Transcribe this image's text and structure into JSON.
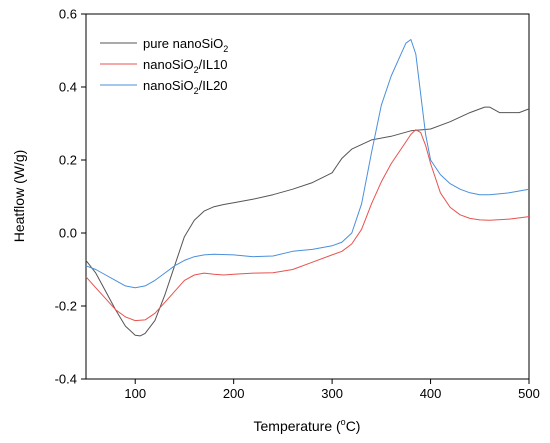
{
  "chart_data": {
    "type": "line",
    "title": "",
    "xlabel": {
      "prefix": "Temperature (",
      "sup": "o",
      "suffix": "C)"
    },
    "ylabel": "Heatflow (W/g)",
    "xlim": [
      50,
      500
    ],
    "ylim": [
      -0.4,
      0.6
    ],
    "xticks": [
      100,
      200,
      300,
      400,
      500
    ],
    "yticks": [
      -0.4,
      -0.2,
      0.0,
      0.2,
      0.4,
      0.6
    ],
    "xtick_labels": [
      "100",
      "200",
      "300",
      "400",
      "500"
    ],
    "ytick_labels": [
      "-0.4",
      "-0.2",
      "0.0",
      "0.2",
      "0.4",
      "0.6"
    ],
    "grid": false,
    "legend": {
      "placement": "top-left",
      "frame": false
    },
    "series": [
      {
        "name": {
          "main": "pure nanoSiO",
          "sub": "2",
          "tail": ""
        },
        "color": "#555555",
        "x": [
          50,
          60,
          70,
          80,
          90,
          100,
          105,
          110,
          120,
          130,
          140,
          150,
          160,
          170,
          180,
          190,
          200,
          220,
          240,
          260,
          280,
          300,
          305,
          310,
          320,
          340,
          360,
          380,
          400,
          420,
          440,
          455,
          460,
          470,
          480,
          490,
          500
        ],
        "y": [
          -0.075,
          -0.11,
          -0.16,
          -0.21,
          -0.255,
          -0.28,
          -0.282,
          -0.275,
          -0.24,
          -0.17,
          -0.09,
          -0.01,
          0.035,
          0.06,
          0.072,
          0.078,
          0.083,
          0.093,
          0.105,
          0.12,
          0.138,
          0.165,
          0.185,
          0.205,
          0.23,
          0.255,
          0.265,
          0.28,
          0.285,
          0.305,
          0.33,
          0.345,
          0.345,
          0.33,
          0.33,
          0.33,
          0.34
        ]
      },
      {
        "name": {
          "main": "nanoSiO",
          "sub": "2",
          "tail": "/IL10"
        },
        "color": "#e8524f",
        "x": [
          50,
          60,
          70,
          80,
          90,
          100,
          110,
          120,
          130,
          140,
          150,
          160,
          170,
          180,
          190,
          200,
          220,
          240,
          260,
          280,
          300,
          310,
          320,
          330,
          340,
          350,
          360,
          370,
          380,
          385,
          390,
          395,
          400,
          410,
          420,
          430,
          440,
          450,
          460,
          480,
          500
        ],
        "y": [
          -0.12,
          -0.15,
          -0.18,
          -0.21,
          -0.23,
          -0.24,
          -0.238,
          -0.22,
          -0.19,
          -0.16,
          -0.13,
          -0.115,
          -0.11,
          -0.113,
          -0.115,
          -0.113,
          -0.11,
          -0.109,
          -0.1,
          -0.08,
          -0.06,
          -0.05,
          -0.03,
          0.01,
          0.08,
          0.14,
          0.19,
          0.23,
          0.27,
          0.283,
          0.275,
          0.24,
          0.19,
          0.11,
          0.07,
          0.05,
          0.04,
          0.036,
          0.035,
          0.038,
          0.045
        ]
      },
      {
        "name": {
          "main": "nanoSiO",
          "sub": "2",
          "tail": "/IL20"
        },
        "color": "#4a8fdc",
        "x": [
          50,
          60,
          70,
          80,
          90,
          100,
          110,
          120,
          130,
          140,
          150,
          160,
          170,
          180,
          200,
          220,
          240,
          260,
          280,
          300,
          310,
          320,
          330,
          340,
          350,
          360,
          370,
          375,
          380,
          385,
          390,
          395,
          400,
          410,
          420,
          430,
          440,
          450,
          460,
          480,
          500
        ],
        "y": [
          -0.09,
          -0.1,
          -0.115,
          -0.13,
          -0.145,
          -0.15,
          -0.145,
          -0.13,
          -0.11,
          -0.09,
          -0.075,
          -0.065,
          -0.06,
          -0.058,
          -0.06,
          -0.065,
          -0.063,
          -0.05,
          -0.045,
          -0.035,
          -0.025,
          0.0,
          0.08,
          0.22,
          0.35,
          0.43,
          0.49,
          0.52,
          0.53,
          0.49,
          0.38,
          0.27,
          0.2,
          0.16,
          0.135,
          0.12,
          0.11,
          0.105,
          0.105,
          0.11,
          0.12
        ]
      }
    ]
  }
}
